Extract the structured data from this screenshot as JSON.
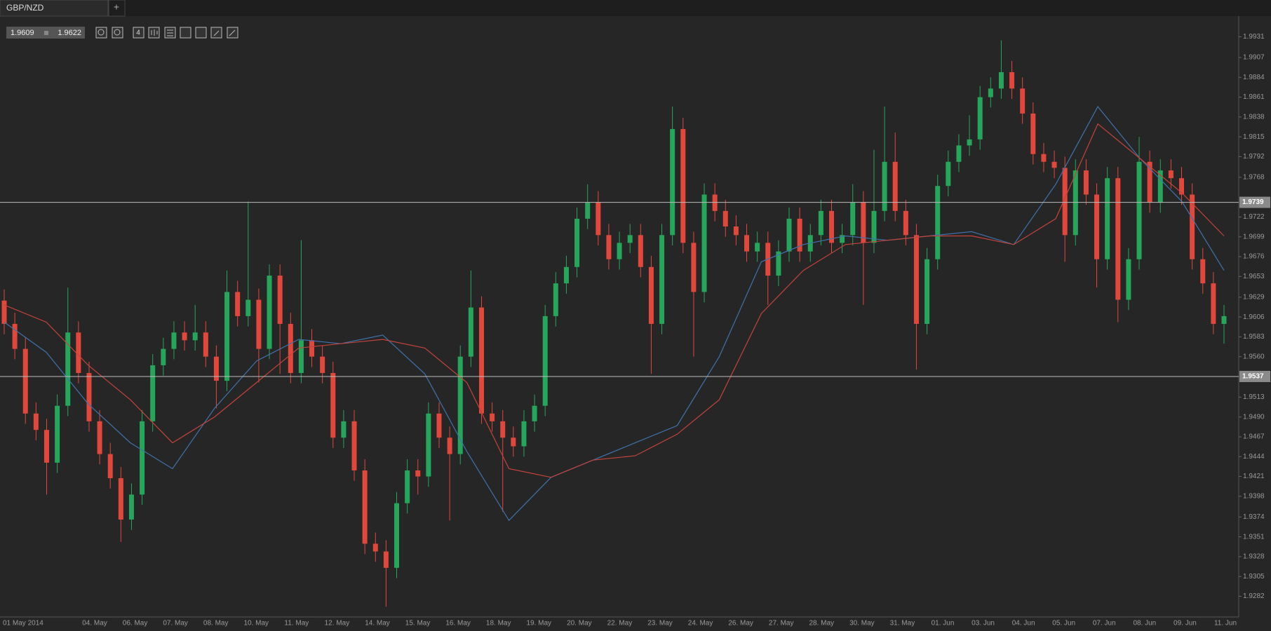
{
  "tab": "GBP/NZD",
  "new_tab": "+",
  "toolbar": {
    "bid": 1.9609,
    "ask": 1.9622,
    "period": "4"
  },
  "chart_data": {
    "type": "candlestick",
    "ylim": [
      1.9258,
      1.9955
    ],
    "yticks": [
      1.9931,
      1.9907,
      1.9884,
      1.9861,
      1.9838,
      1.9815,
      1.9792,
      1.9768,
      1.9722,
      1.9699,
      1.9676,
      1.9653,
      1.9629,
      1.9606,
      1.9583,
      {
        "value": 1.956,
        "label": "1.9560"
      },
      1.9513,
      {
        "value": 1.949,
        "label": "1.9490"
      },
      1.9467,
      1.9444,
      1.9421,
      1.9398,
      1.9374,
      1.9351,
      1.9328,
      1.9305,
      1.9282
    ],
    "levels": [
      1.9739,
      1.9537
    ],
    "xlabels": [
      "01 May 2014",
      "04. May",
      "06. May",
      "07. May",
      "08. May",
      "10. May",
      "11. May",
      "12. May",
      "14. May",
      "15. May",
      "16. May",
      "18. May",
      "19. May",
      "20. May",
      "22. May",
      "23. May",
      "24. May",
      "26. May",
      "27. May",
      "28. May",
      "30. May",
      "31. May",
      "01. Jun",
      "03. Jun",
      "04. Jun",
      "05. Jun",
      "07. Jun",
      "08. Jun",
      "09. Jun",
      "11. Jun"
    ],
    "up_color": "#26a65b",
    "down_color": "#e2473b",
    "open": [
      1.9625,
      1.9598,
      1.9569,
      1.9494,
      1.9475,
      1.9437,
      1.9503,
      1.9588,
      1.9541,
      1.9485,
      1.9447,
      1.9419,
      1.9371,
      1.94,
      1.9485,
      1.955,
      1.9569,
      1.9588,
      1.9579,
      1.9588,
      1.956,
      1.9532,
      1.9635,
      1.9607,
      1.9626,
      1.9569,
      1.9654,
      1.9598,
      1.9541,
      1.9579,
      1.956,
      1.9541,
      1.9466,
      1.9485,
      1.9428,
      1.9343,
      1.9334,
      1.9315,
      1.939,
      1.9428,
      1.9421,
      1.9494,
      1.9466,
      1.9447,
      1.956,
      1.9617,
      1.9494,
      1.9485,
      1.9466,
      1.9456,
      1.9485,
      1.9503,
      1.9607,
      1.9645,
      1.9664,
      1.972,
      1.9739,
      1.9701,
      1.9673,
      1.9692,
      1.9701,
      1.9664,
      1.9598,
      1.9701,
      1.9824,
      1.9692,
      1.9635,
      1.9748,
      1.9729,
      1.9711,
      1.9701,
      1.9682,
      1.9692,
      1.9654,
      1.9682,
      1.972,
      1.9682,
      1.9701,
      1.9729,
      1.9692,
      1.9701,
      1.9739,
      1.9692,
      1.9729,
      1.9786,
      1.9729,
      1.9701,
      1.9598,
      1.9673,
      1.9758,
      1.9786,
      1.9805,
      1.9812,
      1.9861,
      1.9871,
      1.989,
      1.9871,
      1.9842,
      1.9795,
      1.9786,
      1.9779,
      1.9701,
      1.9776,
      1.9748,
      1.9673,
      1.9767,
      1.9626,
      1.9673,
      1.9786,
      1.9739,
      1.9776,
      1.9767,
      1.9748,
      1.9673,
      1.9645,
      1.9598
    ],
    "high": [
      1.9638,
      1.9611,
      1.9582,
      1.9507,
      1.9488,
      1.9516,
      1.964,
      1.9601,
      1.9554,
      1.9498,
      1.946,
      1.9432,
      1.9413,
      1.9498,
      1.9563,
      1.9582,
      1.9601,
      1.9601,
      1.962,
      1.9601,
      1.9573,
      1.966,
      1.9648,
      1.974,
      1.9639,
      1.9667,
      1.9667,
      1.9611,
      1.9695,
      1.9592,
      1.9573,
      1.9554,
      1.9498,
      1.9498,
      1.9441,
      1.9356,
      1.9347,
      1.9403,
      1.9441,
      1.9441,
      1.9507,
      1.9507,
      1.9479,
      1.9573,
      1.966,
      1.963,
      1.9507,
      1.9498,
      1.9479,
      1.9498,
      1.9516,
      1.962,
      1.9658,
      1.9677,
      1.9733,
      1.976,
      1.9752,
      1.9714,
      1.9705,
      1.9714,
      1.9714,
      1.9677,
      1.9714,
      1.985,
      1.9837,
      1.9705,
      1.9761,
      1.9761,
      1.9742,
      1.9724,
      1.9714,
      1.9705,
      1.9705,
      1.9695,
      1.9733,
      1.9733,
      1.9714,
      1.9742,
      1.9742,
      1.9714,
      1.976,
      1.9752,
      1.98,
      1.985,
      1.982,
      1.9742,
      1.9714,
      1.9686,
      1.9771,
      1.9799,
      1.9818,
      1.984,
      1.9874,
      1.9884,
      1.9927,
      1.9903,
      1.9884,
      1.9855,
      1.9808,
      1.9799,
      1.9792,
      1.9789,
      1.9789,
      1.9761,
      1.978,
      1.978,
      1.9686,
      1.9815,
      1.9799,
      1.9789,
      1.9789,
      1.978,
      1.9761,
      1.9686,
      1.9658,
      1.962
    ],
    "low": [
      1.9586,
      1.9557,
      1.9482,
      1.9463,
      1.94,
      1.9425,
      1.9491,
      1.9529,
      1.9473,
      1.9435,
      1.9407,
      1.9345,
      1.9359,
      1.9388,
      1.9473,
      1.9538,
      1.9557,
      1.9567,
      1.9567,
      1.9548,
      1.95,
      1.952,
      1.9595,
      1.9595,
      1.953,
      1.9557,
      1.954,
      1.9529,
      1.9529,
      1.9548,
      1.9529,
      1.9454,
      1.9454,
      1.9416,
      1.9331,
      1.9322,
      1.927,
      1.9303,
      1.9378,
      1.94,
      1.9409,
      1.9454,
      1.937,
      1.9435,
      1.9548,
      1.9482,
      1.9473,
      1.938,
      1.9444,
      1.9444,
      1.9473,
      1.9491,
      1.9595,
      1.9633,
      1.9652,
      1.9708,
      1.9689,
      1.9661,
      1.9661,
      1.968,
      1.9652,
      1.954,
      1.9586,
      1.9689,
      1.968,
      1.956,
      1.9623,
      1.9717,
      1.9699,
      1.9689,
      1.967,
      1.967,
      1.962,
      1.9642,
      1.967,
      1.967,
      1.967,
      1.9689,
      1.968,
      1.968,
      1.9689,
      1.962,
      1.968,
      1.9717,
      1.9717,
      1.9689,
      1.9545,
      1.9586,
      1.9661,
      1.9746,
      1.9774,
      1.9793,
      1.98,
      1.9849,
      1.9859,
      1.9859,
      1.983,
      1.9783,
      1.9774,
      1.9767,
      1.967,
      1.9689,
      1.9736,
      1.964,
      1.9661,
      1.96,
      1.9614,
      1.9661,
      1.9727,
      1.9727,
      1.9755,
      1.9736,
      1.9661,
      1.9633,
      1.9586,
      1.9575
    ],
    "close": [
      1.9598,
      1.9569,
      1.9494,
      1.9475,
      1.9437,
      1.9503,
      1.9588,
      1.9541,
      1.9485,
      1.9447,
      1.9419,
      1.9371,
      1.94,
      1.9485,
      1.955,
      1.9569,
      1.9588,
      1.9579,
      1.9588,
      1.956,
      1.9532,
      1.9635,
      1.9607,
      1.9626,
      1.9569,
      1.9654,
      1.9598,
      1.9541,
      1.9579,
      1.956,
      1.9541,
      1.9466,
      1.9485,
      1.9428,
      1.9343,
      1.9334,
      1.9315,
      1.939,
      1.9428,
      1.9421,
      1.9494,
      1.9466,
      1.9447,
      1.956,
      1.9617,
      1.9494,
      1.9485,
      1.9466,
      1.9456,
      1.9485,
      1.9503,
      1.9607,
      1.9645,
      1.9664,
      1.972,
      1.9739,
      1.9701,
      1.9673,
      1.9692,
      1.9701,
      1.9664,
      1.9598,
      1.9701,
      1.9824,
      1.9692,
      1.9635,
      1.9748,
      1.9729,
      1.9711,
      1.9701,
      1.9682,
      1.9692,
      1.9654,
      1.9682,
      1.972,
      1.9682,
      1.9701,
      1.9729,
      1.9692,
      1.9701,
      1.9739,
      1.9692,
      1.9729,
      1.9786,
      1.9729,
      1.9701,
      1.9598,
      1.9673,
      1.9758,
      1.9786,
      1.9805,
      1.9812,
      1.9861,
      1.9871,
      1.989,
      1.9871,
      1.9842,
      1.9795,
      1.9786,
      1.9779,
      1.9701,
      1.9776,
      1.9748,
      1.9673,
      1.9767,
      1.9626,
      1.9673,
      1.9786,
      1.9739,
      1.9776,
      1.9767,
      1.9748,
      1.9673,
      1.9645,
      1.9598,
      1.9607
    ],
    "series": [
      {
        "color": "#3f72ad",
        "values": [
          1.96,
          1.9565,
          1.9505,
          1.946,
          1.943,
          1.95,
          1.9555,
          1.958,
          1.9575,
          1.9585,
          1.954,
          1.945,
          1.937,
          1.942,
          1.944,
          1.946,
          1.948,
          1.956,
          1.967,
          1.969,
          1.97,
          1.9695,
          1.97,
          1.9705,
          1.969,
          1.976,
          1.985,
          1.979,
          1.974,
          1.966
        ]
      },
      {
        "color": "#c4433b",
        "values": [
          1.962,
          1.96,
          1.955,
          1.951,
          1.946,
          1.949,
          1.953,
          1.957,
          1.9575,
          1.958,
          1.957,
          1.953,
          1.943,
          1.942,
          1.944,
          1.9445,
          1.947,
          1.951,
          1.961,
          1.966,
          1.969,
          1.9695,
          1.97,
          1.97,
          1.969,
          1.972,
          1.983,
          1.979,
          1.975,
          1.97
        ]
      }
    ]
  }
}
